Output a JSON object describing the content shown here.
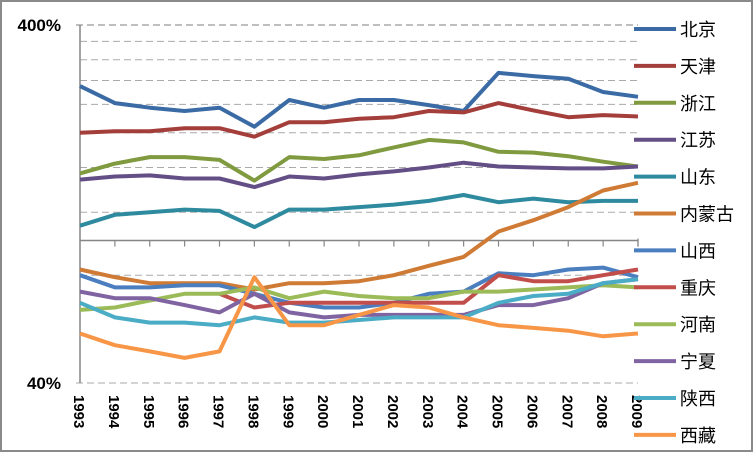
{
  "chart_data": {
    "type": "line",
    "title": "",
    "xlabel": "",
    "ylabel": "",
    "yscale": "log",
    "ylim": [
      40,
      400
    ],
    "ytick_labels": [
      "400%",
      "40%"
    ],
    "ytick_values": [
      400,
      40
    ],
    "gridlines_dashed": [
      360,
      320,
      280,
      240,
      200,
      160,
      120,
      80,
      40
    ],
    "separator_line": 100,
    "grid": true,
    "legend_position": "right",
    "categories": [
      "1993",
      "1994",
      "1995",
      "1996",
      "1997",
      "1998",
      "1999",
      "2000",
      "2001",
      "2002",
      "2003",
      "2004",
      "2005",
      "2006",
      "2007",
      "2008",
      "2009"
    ],
    "series": [
      {
        "name": "北京",
        "color": "#3B6BA5",
        "values": [
          270,
          242,
          235,
          230,
          235,
          208,
          247,
          235,
          247,
          247,
          239,
          230,
          294,
          288,
          283,
          260,
          252
        ]
      },
      {
        "name": "天津",
        "color": "#A33E3B",
        "values": [
          200,
          202,
          202,
          206,
          206,
          195,
          214,
          214,
          219,
          221,
          230,
          228,
          242,
          231,
          221,
          224,
          222
        ]
      },
      {
        "name": "浙江",
        "color": "#7F9A3F",
        "values": [
          154,
          164,
          171,
          171,
          168,
          147,
          171,
          169,
          173,
          182,
          191,
          188,
          177,
          176,
          172,
          166,
          161
        ]
      },
      {
        "name": "江苏",
        "color": "#644E86",
        "values": [
          148,
          151,
          152,
          149,
          149,
          141,
          151,
          149,
          153,
          156,
          160,
          165,
          161,
          160,
          159,
          159,
          161
        ]
      },
      {
        "name": "山东",
        "color": "#2E8A9E",
        "values": [
          110,
          118,
          120,
          122,
          121,
          109,
          122,
          122,
          124,
          126,
          129,
          134,
          128,
          131,
          128,
          129,
          129
        ]
      },
      {
        "name": "内蒙古",
        "color": "#CF7A35",
        "values": [
          83,
          79,
          76,
          76,
          76,
          73,
          76,
          76,
          77,
          80,
          85,
          90,
          106,
          114,
          124,
          138,
          145
        ]
      },
      {
        "name": "山西",
        "color": "#4A7EBF",
        "values": [
          80,
          74,
          74,
          75,
          75,
          71,
          67,
          65,
          65,
          67,
          71,
          72,
          81,
          80,
          83,
          84,
          79
        ]
      },
      {
        "name": "重庆",
        "color": "#C24E4B",
        "values": [
          null,
          null,
          null,
          null,
          71,
          65,
          67,
          67,
          67,
          67,
          67,
          67,
          80,
          77,
          77,
          80,
          83
        ]
      },
      {
        "name": "河南",
        "color": "#9BBB59",
        "values": [
          64,
          65,
          68,
          71,
          71,
          74,
          69,
          72,
          70,
          69,
          69,
          72,
          72,
          73,
          74,
          75,
          74
        ]
      },
      {
        "name": "宁夏",
        "color": "#8064A2",
        "values": [
          72,
          69,
          69,
          66,
          63,
          71,
          63,
          61,
          62,
          62,
          62,
          62,
          66,
          66,
          69,
          76,
          78
        ]
      },
      {
        "name": "陕西",
        "color": "#4BACC6",
        "values": [
          67,
          61,
          59,
          59,
          58,
          61,
          59,
          59,
          60,
          61,
          61,
          61,
          67,
          70,
          71,
          76,
          78
        ]
      },
      {
        "name": "西藏",
        "color": "#F79646",
        "values": [
          55,
          51,
          49,
          47,
          49,
          79,
          58,
          58,
          62,
          66,
          65,
          61,
          58,
          57,
          56,
          54,
          55
        ]
      }
    ]
  }
}
